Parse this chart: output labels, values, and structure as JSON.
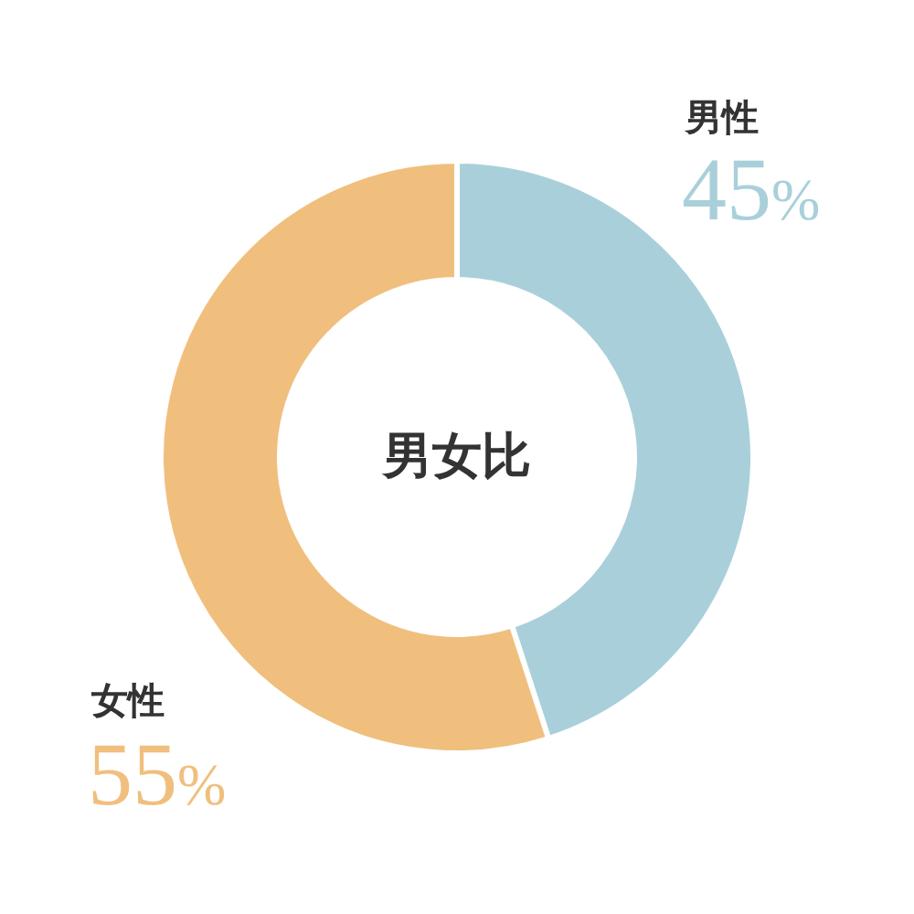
{
  "chart_data": {
    "type": "donut",
    "title": "男女比",
    "categories": [
      "男性",
      "女性"
    ],
    "values": [
      45,
      55
    ],
    "colors": [
      "#a9d0da",
      "#f0bf7e"
    ],
    "value_labels": [
      "45%",
      "55%"
    ]
  }
}
